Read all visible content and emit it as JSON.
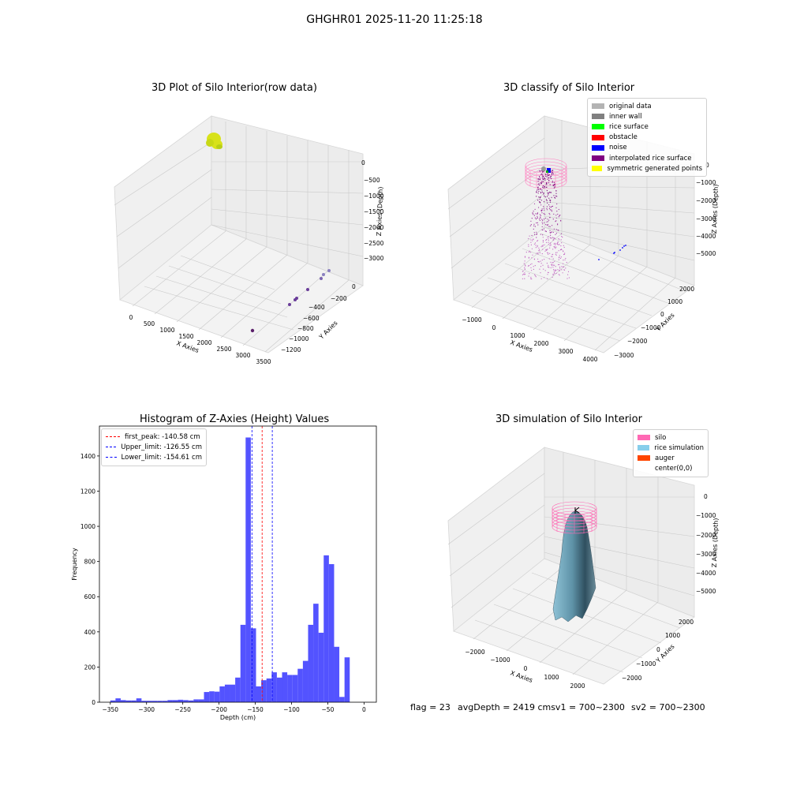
{
  "suptitle": "GHGHR01 2025-11-20 11:25:18",
  "panels": {
    "raw": {
      "title": "3D Plot of Silo Interior(row data)",
      "xlabel": "X Axies",
      "ylabel": "Y Axies",
      "zlabel": "Z Axies (Depth)",
      "xticks": [
        "0",
        "500",
        "1000",
        "1500",
        "2000",
        "2500",
        "3000",
        "3500"
      ],
      "yticks": [
        "0",
        "−200",
        "−400",
        "−600",
        "−800",
        "−1000",
        "−1200"
      ],
      "zticks": [
        "0",
        "−500",
        "−1000",
        "−1500",
        "−2000",
        "−2500",
        "−3000"
      ]
    },
    "classify": {
      "title": "3D classify of Silo Interior",
      "xlabel": "X Axies",
      "ylabel": "Y Axies",
      "zlabel": "Z Axies (Depth)",
      "xticks": [
        "−1000",
        "0",
        "1000",
        "2000",
        "3000",
        "4000"
      ],
      "yticks": [
        "2000",
        "1000",
        "0",
        "−1000",
        "−2000",
        "−3000"
      ],
      "zticks": [
        "0",
        "−1000",
        "−2000",
        "−3000",
        "−4000",
        "−5000"
      ],
      "legend": [
        {
          "label": "original data",
          "color": "#b3b3b3"
        },
        {
          "label": "inner wall",
          "color": "#808080"
        },
        {
          "label": "rice surface",
          "color": "#00ff00"
        },
        {
          "label": "obstacle",
          "color": "#ff0000"
        },
        {
          "label": "noise",
          "color": "#0000ff"
        },
        {
          "label": "interpolated rice surface",
          "color": "#800080"
        },
        {
          "label": "symmetric generated points",
          "color": "#ffff00"
        }
      ]
    },
    "simulation": {
      "title": "3D simulation of Silo Interior",
      "xlabel": "X Axies",
      "ylabel": "Y Axies",
      "zlabel": "Z Axies (Depth)",
      "xticks": [
        "−2000",
        "−1000",
        "0",
        "1000",
        "2000"
      ],
      "yticks": [
        "2000",
        "1000",
        "0",
        "−1000",
        "−2000"
      ],
      "zticks": [
        "0",
        "−1000",
        "−2000",
        "−3000",
        "−4000",
        "−5000"
      ],
      "legend": [
        {
          "label": "silo",
          "color": "#ff69b4"
        },
        {
          "label": "rice simulation",
          "color": "#87ceeb"
        },
        {
          "label": "auger",
          "color": "#ff4500"
        },
        {
          "label": "center(0,0)",
          "color": ""
        }
      ]
    }
  },
  "footer": {
    "flag": "flag = 23",
    "avg": "avgDepth = 2419 cmsv1 = 700~2300",
    "sv2": "sv2 = 700~2300"
  },
  "colors": {
    "hist": "#4a4aff",
    "first_peak": "#ff0000",
    "limits": "#0000ff"
  },
  "chart_data": [
    {
      "type": "histogram",
      "title": "Histogram of Z-Axies (Height) Values",
      "xlabel": "Depth (cm)",
      "ylabel": "Frequency",
      "xlim": [
        -365,
        17
      ],
      "ylim": [
        0,
        1570
      ],
      "xticks": [
        -350,
        -300,
        -250,
        -200,
        -150,
        -100,
        -50,
        0
      ],
      "yticks": [
        0,
        200,
        400,
        600,
        800,
        1000,
        1200,
        1400
      ],
      "bin_width": 7.18,
      "bin_start": -350,
      "counts": [
        10,
        22,
        12,
        10,
        10,
        22,
        8,
        8,
        8,
        8,
        8,
        12,
        12,
        14,
        12,
        10,
        16,
        16,
        58,
        62,
        60,
        90,
        100,
        100,
        140,
        440,
        1505,
        420,
        90,
        125,
        135,
        170,
        140,
        170,
        155,
        155,
        190,
        235,
        440,
        560,
        395,
        835,
        785,
        315,
        30,
        255
      ],
      "vlines": [
        {
          "label": "first_peak: -140.58 cm",
          "x": -140.58,
          "color": "#ff0000"
        },
        {
          "label": "Upper_limit: -126.55 cm",
          "x": -126.55,
          "color": "#0000ff"
        },
        {
          "label": "Lower_limit: -154.61 cm",
          "x": -154.61,
          "color": "#0000ff"
        }
      ]
    }
  ]
}
